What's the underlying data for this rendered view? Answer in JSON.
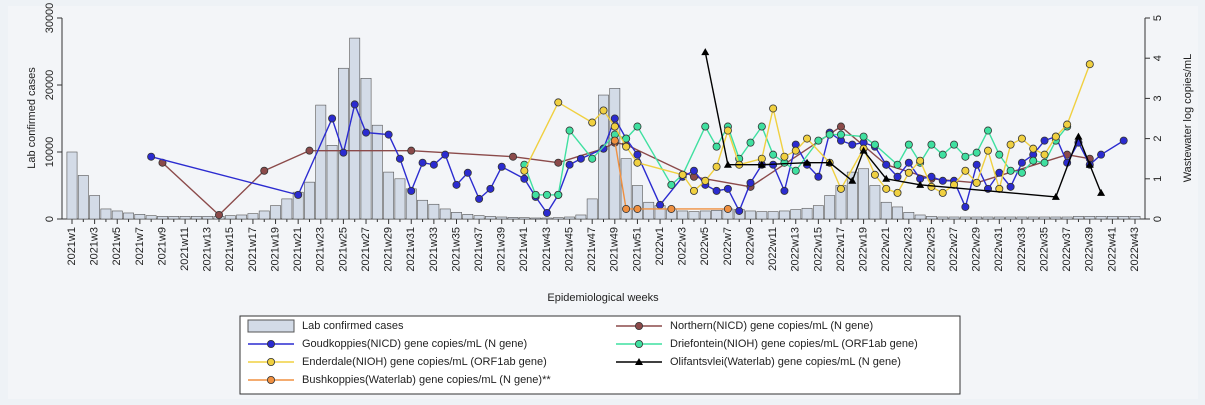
{
  "chart_data": {
    "type": "bar-line",
    "x_label": "Epidemiological weeks",
    "y_label": "Lab confirmed cases",
    "y2_label": "Wastewater log copies/mL",
    "ylim": [
      0,
      30000
    ],
    "yticks": [
      0,
      10000,
      20000,
      30000
    ],
    "y2lim": [
      0,
      5
    ],
    "y2ticks": [
      0,
      1,
      2,
      3,
      4,
      5
    ],
    "categories": [
      "2021w1",
      null,
      "2021w3",
      null,
      "2021w5",
      null,
      "2021w7",
      null,
      "2021w9",
      null,
      "2021w11",
      null,
      "2021w13",
      null,
      "2021w15",
      null,
      "2021w17",
      null,
      "2021w19",
      null,
      "2021w21",
      null,
      "2021w23",
      null,
      "2021w25",
      null,
      "2021w27",
      null,
      "2021w29",
      null,
      "2021w31",
      null,
      "2021w33",
      null,
      "2021w35",
      null,
      "2021w37",
      null,
      "2021w39",
      null,
      "2021w41",
      null,
      "2021w43",
      null,
      "2021w45",
      null,
      "2021w47",
      null,
      "2021w49",
      null,
      "2021w51",
      null,
      "2022w1",
      null,
      "2022w3",
      null,
      "2022w5",
      null,
      "2022w7",
      null,
      "2022w9",
      null,
      "2022w11",
      null,
      "2022w13",
      null,
      "2022w15",
      null,
      "2022w17",
      null,
      "2022w19",
      null,
      "2022w21",
      null,
      "2022w23",
      null,
      "2022w25",
      null,
      "2022w27",
      null,
      "2022w29",
      null,
      "2022w31",
      null,
      "2022w33",
      null,
      "2022w35",
      null,
      "2022w37",
      null,
      "2022w39",
      null,
      "2022w41",
      null,
      "2022w43"
    ],
    "series": [
      {
        "name": "Lab confirmed cases",
        "type": "bar",
        "color": "#d3dbe7",
        "values": [
          10000,
          6500,
          3500,
          1500,
          1200,
          900,
          700,
          500,
          400,
          400,
          400,
          400,
          400,
          400,
          500,
          600,
          800,
          1200,
          2000,
          3000,
          4000,
          5500,
          17000,
          11000,
          22500,
          27000,
          21000,
          14000,
          7000,
          6000,
          4500,
          2800,
          2200,
          1500,
          1000,
          700,
          500,
          400,
          300,
          250,
          200,
          150,
          150,
          200,
          300,
          600,
          3000,
          18500,
          19500,
          9000,
          5000,
          2500,
          2000,
          1500,
          1200,
          1100,
          1200,
          1300,
          1500,
          1400,
          1200,
          1100,
          1100,
          1200,
          1400,
          1600,
          2000,
          3500,
          5000,
          7000,
          7500,
          5000,
          2500,
          1800,
          1000,
          600,
          400,
          300,
          300,
          300,
          300,
          300,
          300,
          300,
          300,
          300,
          300,
          300,
          300,
          400,
          400,
          400,
          400,
          400,
          400
        ]
      },
      {
        "name": "Northern(NICD) gene copies/mL (N gene)",
        "type": "line",
        "axis": "y2",
        "color": "#8b4a4a",
        "marker": "circle",
        "values": [
          null,
          null,
          null,
          null,
          null,
          null,
          null,
          null,
          1.4,
          null,
          null,
          null,
          null,
          0.1,
          null,
          null,
          null,
          1.2,
          null,
          null,
          null,
          1.7,
          null,
          null,
          null,
          null,
          null,
          null,
          null,
          null,
          1.7,
          null,
          null,
          null,
          null,
          null,
          null,
          null,
          null,
          1.55,
          null,
          null,
          null,
          1.4,
          null,
          null,
          null,
          1.75,
          1.9,
          1.85,
          null,
          null,
          null,
          null,
          null,
          1.05,
          null,
          null,
          null,
          null,
          0.8,
          null,
          null,
          null,
          null,
          null,
          null,
          null,
          2.3,
          null,
          null,
          null,
          1.35,
          null,
          null,
          null,
          1.0,
          null,
          null,
          null,
          0.9,
          null,
          null,
          null,
          null,
          null,
          null,
          null,
          1.6,
          null,
          1.5,
          null,
          null,
          null,
          null
        ]
      },
      {
        "name": "Goudkoppies(NICD) gene copies/mL (N gene)",
        "type": "line",
        "axis": "y2",
        "color": "#2b2bd0",
        "marker": "circle",
        "values": [
          null,
          null,
          null,
          null,
          null,
          null,
          null,
          1.55,
          null,
          null,
          null,
          null,
          null,
          null,
          null,
          null,
          null,
          null,
          null,
          null,
          0.6,
          null,
          null,
          2.5,
          1.65,
          2.85,
          2.15,
          null,
          2.1,
          1.5,
          0.7,
          1.4,
          1.35,
          1.6,
          0.85,
          1.15,
          0.5,
          0.75,
          1.3,
          null,
          1.0,
          0.55,
          0.15,
          0.6,
          1.35,
          1.5,
          null,
          1.75,
          2.5,
          2.0,
          1.6,
          null,
          0.35,
          null,
          1.05,
          1.2,
          0.85,
          0.7,
          0.75,
          0.2,
          0.9,
          1.35,
          1.35,
          0.7,
          1.85,
          1.35,
          1.05,
          2.15,
          1.95,
          1.85,
          1.9,
          1.8,
          1.35,
          1.05,
          1.4,
          1.0,
          1.05,
          0.95,
          0.95,
          0.3,
          1.35,
          0.75,
          1.15,
          0.8,
          1.4,
          1.6,
          1.95,
          2.05,
          1.4,
          1.9,
          1.35,
          1.6,
          null,
          1.95,
          null
        ]
      },
      {
        "name": "Driefontein(NIOH) gene copies/mL (ORF1ab gene)",
        "type": "line",
        "axis": "y2",
        "color": "#3fe0a0",
        "marker": "circle",
        "values": [
          null,
          null,
          null,
          null,
          null,
          null,
          null,
          null,
          null,
          null,
          null,
          null,
          null,
          null,
          null,
          null,
          null,
          null,
          null,
          null,
          null,
          null,
          null,
          null,
          null,
          null,
          null,
          null,
          null,
          null,
          null,
          null,
          null,
          null,
          null,
          null,
          null,
          null,
          null,
          null,
          1.35,
          0.6,
          0.6,
          0.6,
          2.2,
          null,
          1.5,
          null,
          2.1,
          2.0,
          2.3,
          null,
          null,
          0.85,
          1.1,
          null,
          2.3,
          1.8,
          2.3,
          1.5,
          1.9,
          2.3,
          1.6,
          1.4,
          1.2,
          null,
          1.95,
          2.1,
          2.1,
          null,
          2.05,
          1.85,
          null,
          1.35,
          1.85,
          1.4,
          1.85,
          1.6,
          1.85,
          1.55,
          1.65,
          2.2,
          1.6,
          1.2,
          1.15,
          1.45,
          1.4,
          1.95,
          2.3,
          null,
          null,
          null,
          null,
          null,
          null
        ]
      },
      {
        "name": "Enderdale(NIOH) gene copies/mL (ORF1ab gene)",
        "type": "line",
        "axis": "y2",
        "color": "#f0d040",
        "marker": "circle",
        "values": [
          null,
          null,
          null,
          null,
          null,
          null,
          null,
          null,
          null,
          null,
          null,
          null,
          null,
          null,
          null,
          null,
          null,
          null,
          null,
          null,
          null,
          null,
          null,
          null,
          null,
          null,
          null,
          null,
          null,
          null,
          null,
          null,
          null,
          null,
          null,
          null,
          null,
          null,
          null,
          null,
          1.2,
          null,
          null,
          2.9,
          null,
          null,
          2.4,
          2.7,
          2.3,
          1.8,
          1.4,
          null,
          null,
          null,
          1.1,
          0.7,
          0.95,
          1.3,
          2.2,
          1.35,
          null,
          1.5,
          2.75,
          1.55,
          1.7,
          2.0,
          null,
          1.4,
          0.75,
          null,
          1.75,
          1.1,
          0.75,
          0.65,
          1.15,
          1.45,
          0.8,
          0.65,
          0.85,
          1.2,
          0.9,
          1.7,
          0.75,
          1.85,
          2.0,
          1.75,
          1.6,
          2.05,
          2.35,
          null,
          3.85,
          null,
          null,
          null,
          null
        ]
      },
      {
        "name": "Olifantsvlei(Waterlab) gene copies/mL (N gene)",
        "type": "line",
        "axis": "y2",
        "color": "#000000",
        "marker": "triangle",
        "values": [
          null,
          null,
          null,
          null,
          null,
          null,
          null,
          null,
          null,
          null,
          null,
          null,
          null,
          null,
          null,
          null,
          null,
          null,
          null,
          null,
          null,
          null,
          null,
          null,
          null,
          null,
          null,
          null,
          null,
          null,
          null,
          null,
          null,
          null,
          null,
          null,
          null,
          null,
          null,
          null,
          null,
          null,
          null,
          null,
          null,
          null,
          null,
          null,
          null,
          null,
          null,
          null,
          null,
          null,
          null,
          null,
          4.15,
          null,
          1.35,
          null,
          null,
          1.35,
          null,
          null,
          null,
          1.4,
          null,
          1.4,
          null,
          0.95,
          1.7,
          null,
          1.0,
          null,
          null,
          0.85,
          null,
          null,
          null,
          null,
          null,
          null,
          null,
          null,
          null,
          null,
          null,
          0.55,
          null,
          2.05,
          1.35,
          0.65,
          null,
          null,
          null
        ]
      },
      {
        "name": "Bushkoppies(Waterlab) gene copies/mL (N gene)**",
        "type": "line",
        "axis": "y2",
        "color": "#f09040",
        "marker": "circle",
        "values": [
          null,
          null,
          null,
          null,
          null,
          null,
          null,
          null,
          null,
          null,
          null,
          null,
          null,
          null,
          null,
          null,
          null,
          null,
          null,
          null,
          null,
          null,
          null,
          null,
          null,
          null,
          null,
          null,
          null,
          null,
          null,
          null,
          null,
          null,
          null,
          null,
          null,
          null,
          null,
          null,
          null,
          null,
          null,
          null,
          null,
          null,
          null,
          null,
          1.95,
          0.25,
          0.25,
          null,
          null,
          0.25,
          null,
          null,
          null,
          null,
          0.25,
          null,
          null,
          null,
          null,
          null,
          null,
          null,
          null,
          null,
          null,
          null,
          null,
          null,
          null,
          null,
          null,
          null,
          null,
          null,
          null,
          null,
          null,
          null,
          null,
          null,
          null,
          null,
          null,
          null,
          null,
          null,
          null,
          null,
          null,
          null,
          null
        ]
      }
    ]
  }
}
